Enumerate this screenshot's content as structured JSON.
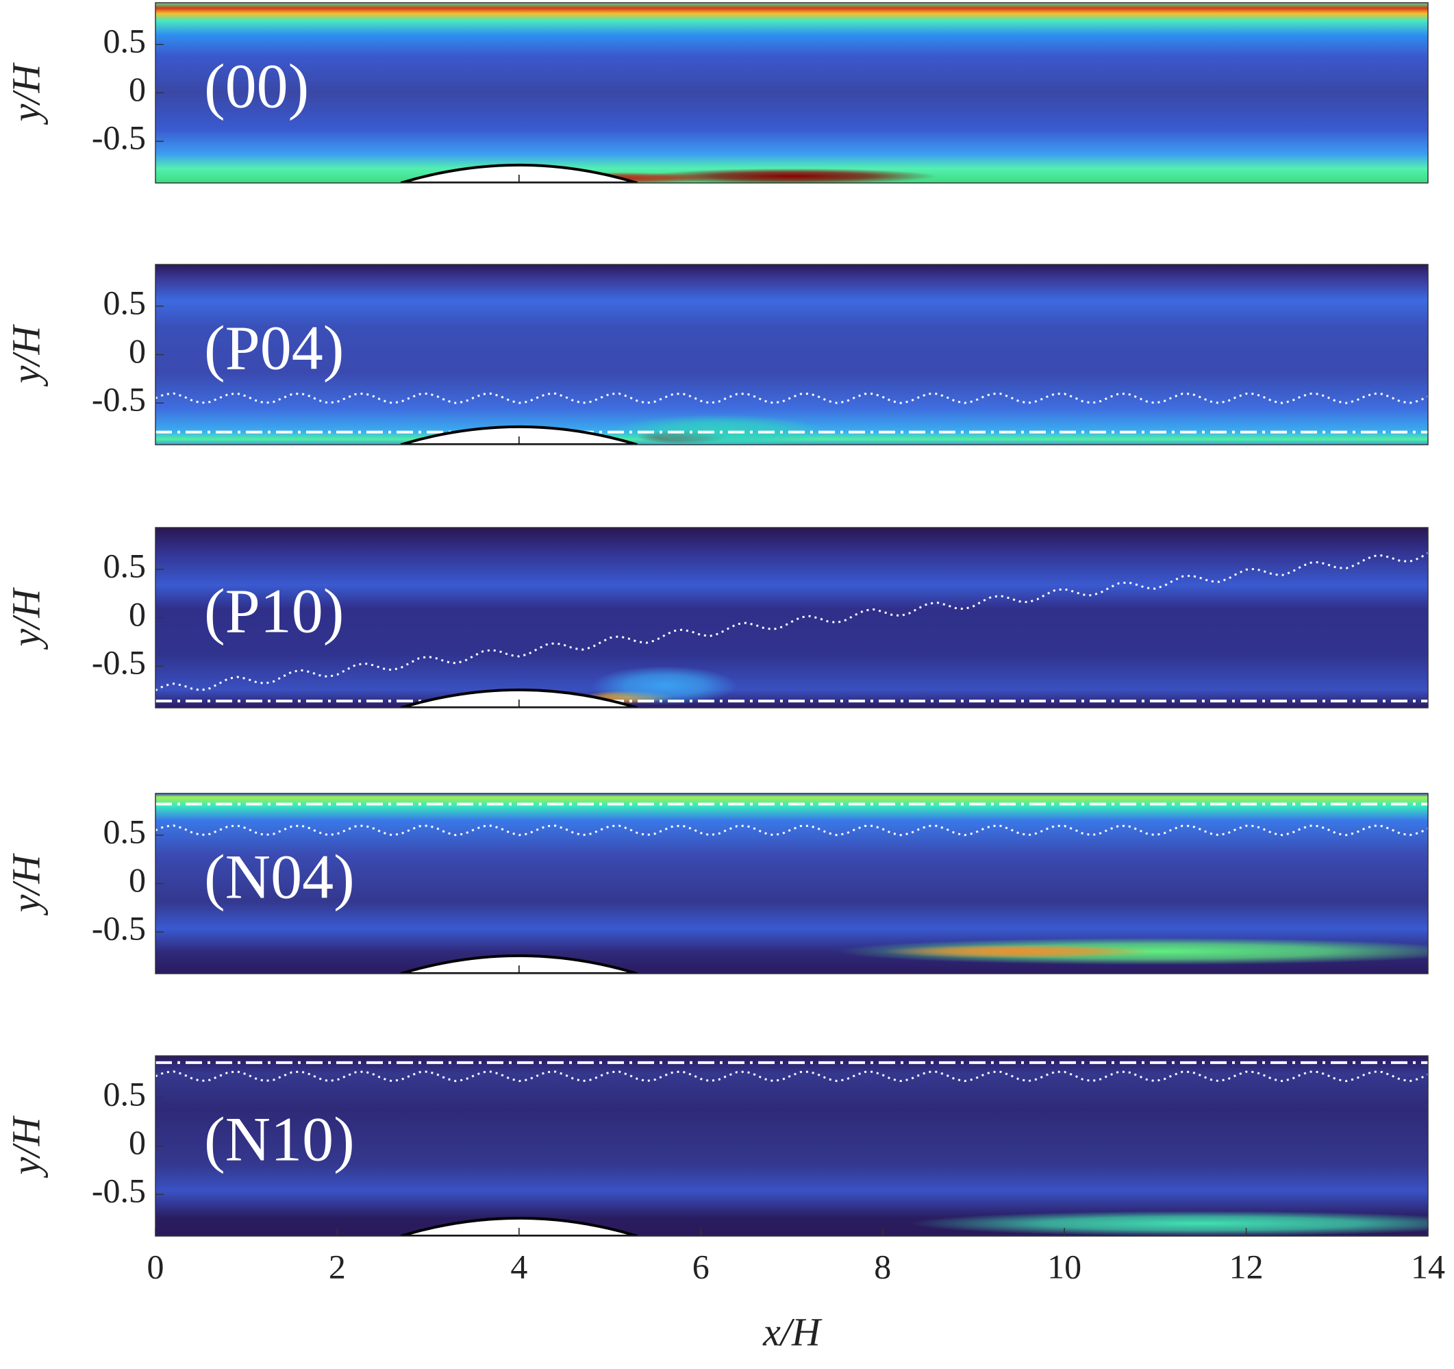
{
  "chart_data": [
    {
      "type": "heatmap",
      "title": "(00)",
      "ylabel": "y/H",
      "xlim": [
        0,
        14
      ],
      "ylim": [
        -0.93,
        0.93
      ],
      "yticks": [
        0.5,
        0,
        -0.5
      ]
    },
    {
      "type": "heatmap",
      "title": "(P04)",
      "ylabel": "y/H",
      "xlim": [
        0,
        14
      ],
      "ylim": [
        -0.93,
        0.93
      ],
      "yticks": [
        0.5,
        0,
        -0.5
      ]
    },
    {
      "type": "heatmap",
      "title": "(P10)",
      "ylabel": "y/H",
      "xlim": [
        0,
        14
      ],
      "ylim": [
        -0.93,
        0.93
      ],
      "yticks": [
        0.5,
        0,
        -0.5
      ]
    },
    {
      "type": "heatmap",
      "title": "(N04)",
      "ylabel": "y/H",
      "xlim": [
        0,
        14
      ],
      "ylim": [
        -0.93,
        0.93
      ],
      "yticks": [
        0.5,
        0,
        -0.5
      ]
    },
    {
      "type": "heatmap",
      "title": "(N10)",
      "ylabel": "y/H",
      "xlabel": "x/H",
      "xlim": [
        0,
        14
      ],
      "ylim": [
        -0.93,
        0.93
      ],
      "yticks": [
        0.5,
        0,
        -0.5
      ],
      "xticks": [
        0,
        2,
        4,
        6,
        8,
        10,
        12,
        14
      ]
    }
  ]
}
